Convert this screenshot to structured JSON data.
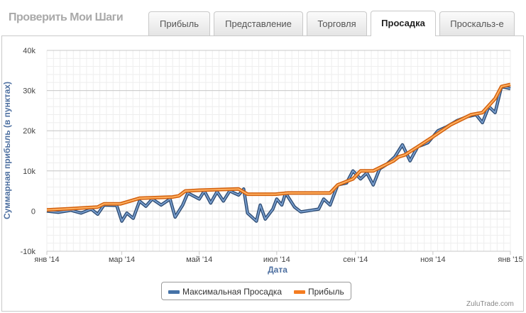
{
  "header": {
    "brand": "Проверить Мои Шаги",
    "tabs": [
      {
        "label": "Прибыль",
        "active": false
      },
      {
        "label": "Представление",
        "active": false
      },
      {
        "label": "Торговля",
        "active": false
      },
      {
        "label": "Просадка",
        "active": true
      },
      {
        "label": "Проскальз-е",
        "active": false
      }
    ]
  },
  "chart_data": {
    "type": "line",
    "xlabel": "Дата",
    "ylabel": "Суммарная прибыль (в пунктах)",
    "x_ticks": [
      "янв '14",
      "мар '14",
      "май '14",
      "июл '14",
      "сен '14",
      "ноя '14",
      "янв '15"
    ],
    "y_ticks": [
      "-10k",
      "0",
      "10k",
      "20k",
      "30k",
      "40k"
    ],
    "ylim": [
      -10000,
      40000
    ],
    "grid": true,
    "legend_position": "bottom",
    "colors": {
      "drawdown": "#4572a7",
      "profit": "#f47c20"
    },
    "series": [
      {
        "name": "Максимальная Просадка",
        "points": [
          [
            "2014-01-01",
            0
          ],
          [
            "2014-01-10",
            -300
          ],
          [
            "2014-01-20",
            200
          ],
          [
            "2014-01-28",
            -500
          ],
          [
            "2014-02-05",
            500
          ],
          [
            "2014-02-10",
            -800
          ],
          [
            "2014-02-15",
            1500
          ],
          [
            "2014-02-25",
            1400
          ],
          [
            "2014-03-01",
            -2500
          ],
          [
            "2014-03-05",
            -500
          ],
          [
            "2014-03-10",
            -1800
          ],
          [
            "2014-03-15",
            2500
          ],
          [
            "2014-03-20",
            1200
          ],
          [
            "2014-03-25",
            3000
          ],
          [
            "2014-04-01",
            1500
          ],
          [
            "2014-04-08",
            3000
          ],
          [
            "2014-04-12",
            -1500
          ],
          [
            "2014-04-18",
            1500
          ],
          [
            "2014-04-22",
            4500
          ],
          [
            "2014-05-01",
            3000
          ],
          [
            "2014-05-05",
            5000
          ],
          [
            "2014-05-10",
            2000
          ],
          [
            "2014-05-15",
            4800
          ],
          [
            "2014-05-20",
            2500
          ],
          [
            "2014-05-25",
            5000
          ],
          [
            "2014-06-01",
            4000
          ],
          [
            "2014-06-05",
            5500
          ],
          [
            "2014-06-08",
            -500
          ],
          [
            "2014-06-15",
            -2500
          ],
          [
            "2014-06-18",
            1500
          ],
          [
            "2014-06-22",
            -2000
          ],
          [
            "2014-06-28",
            500
          ],
          [
            "2014-07-01",
            3000
          ],
          [
            "2014-07-05",
            1500
          ],
          [
            "2014-07-08",
            4500
          ],
          [
            "2014-07-15",
            1000
          ],
          [
            "2014-07-20",
            -200
          ],
          [
            "2014-07-28",
            200
          ],
          [
            "2014-08-03",
            500
          ],
          [
            "2014-08-07",
            3000
          ],
          [
            "2014-08-12",
            1500
          ],
          [
            "2014-08-18",
            6500
          ],
          [
            "2014-08-25",
            7000
          ],
          [
            "2014-08-30",
            10000
          ],
          [
            "2014-09-05",
            8000
          ],
          [
            "2014-09-10",
            9500
          ],
          [
            "2014-09-15",
            6500
          ],
          [
            "2014-09-20",
            10500
          ],
          [
            "2014-09-25",
            11500
          ],
          [
            "2014-10-02",
            13500
          ],
          [
            "2014-10-08",
            16500
          ],
          [
            "2014-10-14",
            12500
          ],
          [
            "2014-10-20",
            16000
          ],
          [
            "2014-10-28",
            17000
          ],
          [
            "2014-11-05",
            20000
          ],
          [
            "2014-11-12",
            21000
          ],
          [
            "2014-11-20",
            22500
          ],
          [
            "2014-11-28",
            23500
          ],
          [
            "2014-12-05",
            24000
          ],
          [
            "2014-12-10",
            22000
          ],
          [
            "2014-12-15",
            26000
          ],
          [
            "2014-12-20",
            24500
          ],
          [
            "2014-12-25",
            31000
          ],
          [
            "2015-01-01",
            30500
          ]
        ]
      },
      {
        "name": "Прибыль",
        "points": [
          [
            "2014-01-01",
            300
          ],
          [
            "2014-01-20",
            600
          ],
          [
            "2014-02-10",
            1000
          ],
          [
            "2014-02-15",
            1800
          ],
          [
            "2014-02-28",
            1800
          ],
          [
            "2014-03-15",
            3200
          ],
          [
            "2014-04-10",
            3500
          ],
          [
            "2014-04-15",
            3800
          ],
          [
            "2014-04-20",
            5000
          ],
          [
            "2014-05-01",
            5200
          ],
          [
            "2014-06-01",
            5500
          ],
          [
            "2014-06-08",
            4200
          ],
          [
            "2014-06-30",
            4200
          ],
          [
            "2014-07-10",
            4500
          ],
          [
            "2014-08-12",
            4500
          ],
          [
            "2014-08-18",
            6500
          ],
          [
            "2014-08-30",
            8000
          ],
          [
            "2014-09-05",
            10000
          ],
          [
            "2014-09-15",
            10000
          ],
          [
            "2014-10-01",
            12500
          ],
          [
            "2014-10-05",
            13500
          ],
          [
            "2014-10-10",
            14000
          ],
          [
            "2014-10-20",
            16000
          ],
          [
            "2014-11-01",
            18500
          ],
          [
            "2014-11-15",
            21500
          ],
          [
            "2014-12-01",
            24000
          ],
          [
            "2014-12-10",
            24500
          ],
          [
            "2014-12-20",
            28000
          ],
          [
            "2014-12-25",
            31000
          ],
          [
            "2015-01-01",
            31500
          ]
        ]
      }
    ]
  },
  "footer": {
    "credit": "ZuluTrade.com"
  }
}
